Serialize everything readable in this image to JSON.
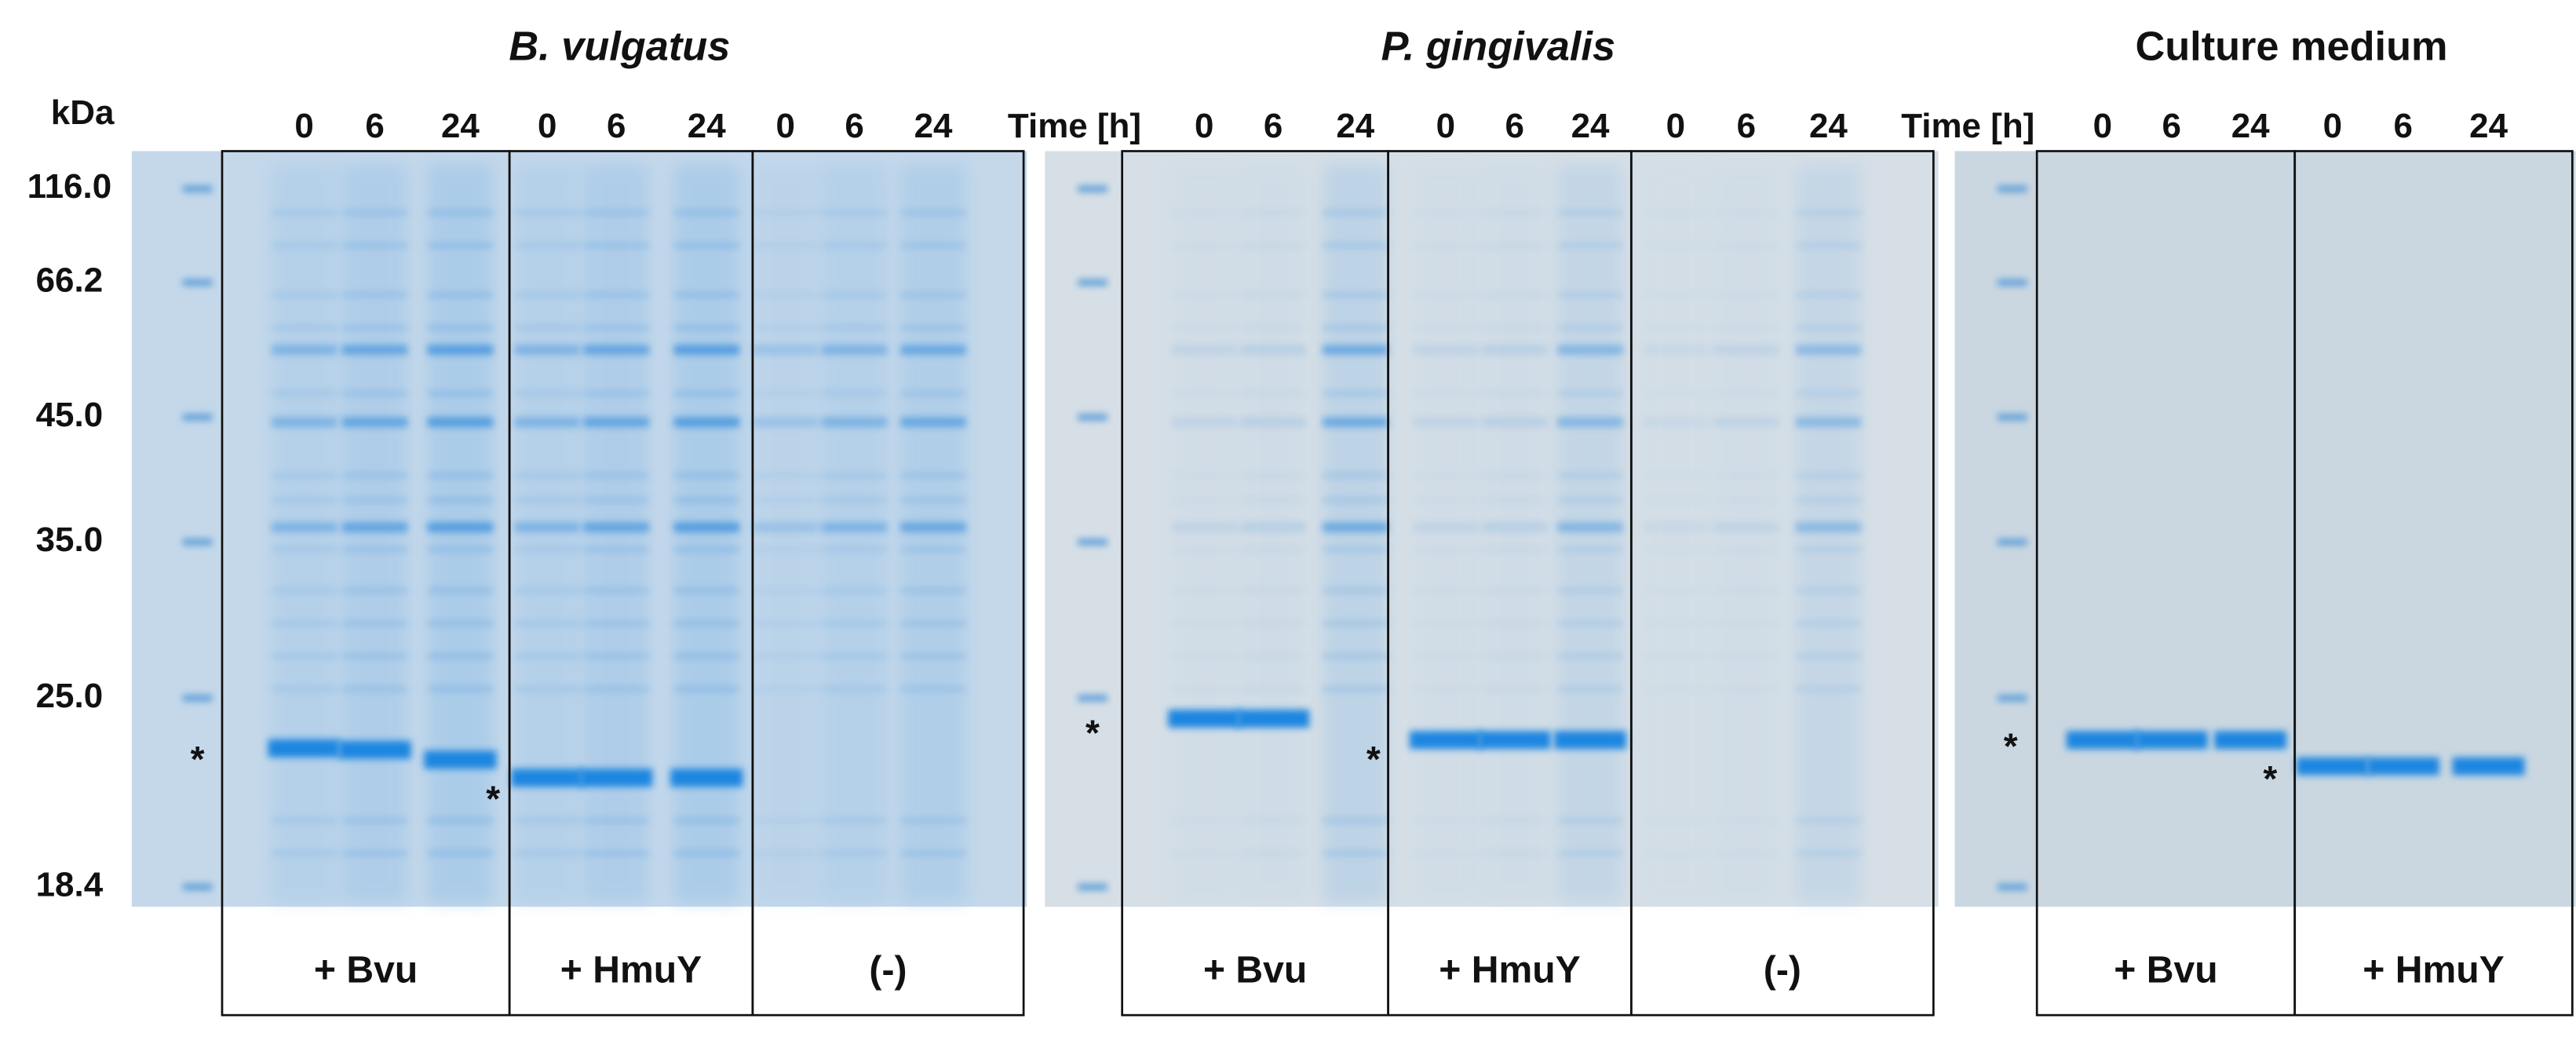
{
  "kda_unit": "kDa",
  "kda_labels": [
    "116.0",
    "66.2",
    "45.0",
    "35.0",
    "25.0",
    "18.4"
  ],
  "panels": [
    {
      "title": "B. vulgatus",
      "groups": [
        {
          "label": "+ Bvu",
          "times": [
            0,
            6,
            24
          ],
          "asterisk": "*"
        },
        {
          "label": "+ HmuY",
          "times": [
            0,
            6,
            24
          ],
          "asterisk": "*"
        },
        {
          "label": "(-)",
          "times": [
            0,
            6,
            24
          ]
        }
      ]
    },
    {
      "title": "P. gingivalis",
      "time_label": "Time [h]",
      "groups": [
        {
          "label": "+ Bvu",
          "times": [
            0,
            6,
            24
          ],
          "asterisk": "*"
        },
        {
          "label": "+ HmuY",
          "times": [
            0,
            6,
            24
          ],
          "asterisk": "*"
        },
        {
          "label": "(-)",
          "times": [
            0,
            6,
            24
          ]
        }
      ]
    },
    {
      "title": "Culture medium",
      "time_label": "Time [h]",
      "groups": [
        {
          "label": "+ Bvu",
          "times": [
            0,
            6,
            24
          ],
          "asterisk": "*"
        },
        {
          "label": "+ HmuY",
          "times": [
            0,
            6,
            24
          ],
          "asterisk": "*"
        }
      ]
    }
  ]
}
